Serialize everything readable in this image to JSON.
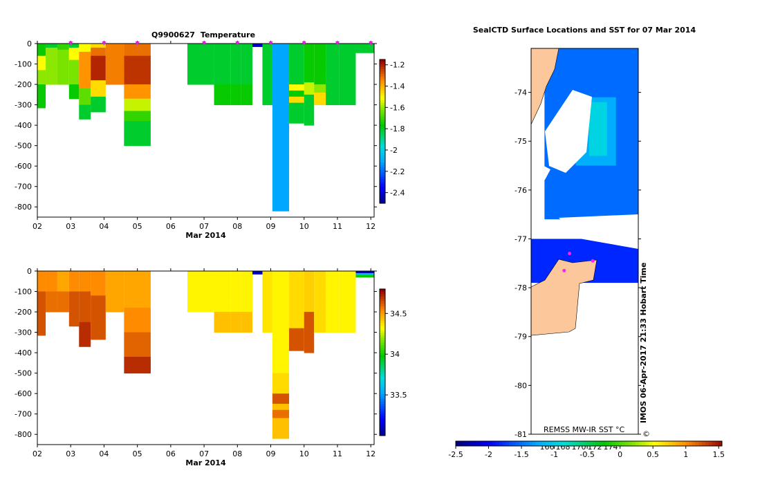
{
  "page": {
    "left_title_prefix": "Q9900627",
    "left_title_var": "Temperature",
    "right_title": "SealCTD Surface Locations and SST for 07 Mar 2014",
    "watermark": "IMOS 06-Apr-2017 21:33 Hobart Time",
    "copyright_symbol": "©"
  },
  "chart_data": [
    {
      "id": "temperature-section",
      "type": "heatmap",
      "title": "Q9900627  Temperature",
      "xlabel": "Mar 2014",
      "ylabel": "",
      "x_ticks": [
        "02",
        "03",
        "04",
        "05",
        "06",
        "07",
        "08",
        "09",
        "10",
        "11",
        "12"
      ],
      "x_tick_values": [
        2,
        3,
        4,
        5,
        6,
        7,
        8,
        9,
        10,
        11,
        12
      ],
      "xlim": [
        2,
        12.1
      ],
      "ylim": [
        -850,
        0
      ],
      "y_ticks": [
        0,
        -100,
        -200,
        -300,
        -400,
        -500,
        -600,
        -700,
        -800
      ],
      "colorbar": {
        "ticks": [
          -1.2,
          -1.4,
          -1.6,
          -1.8,
          -2,
          -2.2,
          -2.4
        ],
        "range": [
          -2.5,
          -1.15
        ]
      },
      "profile_markers_x": [
        3,
        4,
        5,
        7,
        8,
        9,
        10,
        11,
        12
      ],
      "profiles": [
        {
          "x0": 2.0,
          "x1": 2.25,
          "depth": -315,
          "segs": [
            [
              0,
              -60,
              -1.75
            ],
            [
              -60,
              -130,
              -1.5
            ],
            [
              -130,
              -200,
              -1.6
            ],
            [
              -200,
              -315,
              -1.75
            ]
          ]
        },
        {
          "x0": 2.25,
          "x1": 2.6,
          "depth": -200,
          "segs": [
            [
              0,
              -20,
              -1.8
            ],
            [
              -20,
              -200,
              -1.6
            ]
          ]
        },
        {
          "x0": 2.6,
          "x1": 2.95,
          "depth": -200,
          "segs": [
            [
              0,
              -30,
              -1.7
            ],
            [
              -30,
              -200,
              -1.62
            ]
          ]
        },
        {
          "x0": 2.95,
          "x1": 3.25,
          "depth": -270,
          "segs": [
            [
              0,
              -20,
              -1.8
            ],
            [
              -20,
              -80,
              -1.5
            ],
            [
              -80,
              -200,
              -1.62
            ],
            [
              -200,
              -270,
              -1.75
            ]
          ]
        },
        {
          "x0": 3.25,
          "x1": 3.6,
          "depth": -370,
          "segs": [
            [
              0,
              -40,
              -1.5
            ],
            [
              -40,
              -220,
              -1.35
            ],
            [
              -220,
              -300,
              -1.65
            ],
            [
              -300,
              -370,
              -1.8
            ]
          ]
        },
        {
          "x0": 3.6,
          "x1": 4.05,
          "depth": -335,
          "segs": [
            [
              0,
              -20,
              -1.45
            ],
            [
              -20,
              -60,
              -1.3
            ],
            [
              -60,
              -180,
              -1.2
            ],
            [
              -180,
              -260,
              -1.45
            ],
            [
              -260,
              -335,
              -1.8
            ]
          ]
        },
        {
          "x0": 4.05,
          "x1": 4.6,
          "depth": -200,
          "segs": [
            [
              0,
              -200,
              -1.32
            ]
          ]
        },
        {
          "x0": 4.6,
          "x1": 5.4,
          "depth": -500,
          "segs": [
            [
              0,
              -60,
              -1.3
            ],
            [
              -60,
              -200,
              -1.22
            ],
            [
              -200,
              -270,
              -1.35
            ],
            [
              -270,
              -330,
              -1.55
            ],
            [
              -330,
              -380,
              -1.7
            ],
            [
              -380,
              -500,
              -1.8
            ]
          ]
        },
        {
          "x0": 6.5,
          "x1": 7.3,
          "depth": -200,
          "segs": [
            [
              0,
              -200,
              -1.8
            ]
          ]
        },
        {
          "x0": 7.3,
          "x1": 7.8,
          "depth": -300,
          "segs": [
            [
              0,
              -200,
              -1.8
            ],
            [
              -200,
              -300,
              -1.75
            ]
          ]
        },
        {
          "x0": 7.8,
          "x1": 8.1,
          "depth": -300,
          "segs": [
            [
              0,
              -200,
              -1.8
            ],
            [
              -200,
              -300,
              -1.75
            ]
          ]
        },
        {
          "x0": 8.1,
          "x1": 8.45,
          "depth": -300,
          "segs": [
            [
              0,
              -200,
              -1.8
            ],
            [
              -200,
              -300,
              -1.75
            ]
          ]
        },
        {
          "x0": 8.75,
          "x1": 9.05,
          "depth": -300,
          "segs": [
            [
              0,
              -300,
              -1.8
            ]
          ]
        },
        {
          "x0": 9.05,
          "x1": 9.55,
          "depth": -820,
          "segs": [
            [
              0,
              -820,
              -2.1
            ]
          ]
        },
        {
          "x0": 9.55,
          "x1": 10.0,
          "depth": -390,
          "segs": [
            [
              0,
              -200,
              -1.8
            ],
            [
              -200,
              -230,
              -1.5
            ],
            [
              -230,
              -260,
              -1.75
            ],
            [
              -260,
              -290,
              -1.45
            ],
            [
              -290,
              -390,
              -1.8
            ]
          ]
        },
        {
          "x0": 10.0,
          "x1": 10.3,
          "depth": -400,
          "segs": [
            [
              0,
              -190,
              -1.75
            ],
            [
              -190,
              -250,
              -1.55
            ],
            [
              -250,
              -400,
              -1.8
            ]
          ]
        },
        {
          "x0": 10.3,
          "x1": 10.65,
          "depth": -300,
          "segs": [
            [
              0,
              -200,
              -1.75
            ],
            [
              -200,
              -240,
              -1.6
            ],
            [
              -240,
              -300,
              -1.45
            ]
          ]
        },
        {
          "x0": 10.65,
          "x1": 11.05,
          "depth": -300,
          "segs": [
            [
              0,
              -300,
              -1.8
            ]
          ]
        },
        {
          "x0": 11.05,
          "x1": 11.55,
          "depth": -300,
          "segs": [
            [
              0,
              -300,
              -1.8
            ]
          ]
        },
        {
          "x0": 11.55,
          "x1": 12.1,
          "depth": -45,
          "segs": [
            [
              0,
              -45,
              -1.8
            ]
          ]
        },
        {
          "x0": 8.45,
          "x1": 8.75,
          "depth": -15,
          "segs": [
            [
              0,
              -15,
              -2.4
            ]
          ]
        }
      ]
    },
    {
      "id": "salinity-section",
      "type": "heatmap",
      "title": "",
      "xlabel": "Mar 2014",
      "ylabel": "",
      "x_ticks": [
        "02",
        "03",
        "04",
        "05",
        "06",
        "07",
        "08",
        "09",
        "10",
        "11",
        "12"
      ],
      "x_tick_values": [
        2,
        3,
        4,
        5,
        6,
        7,
        8,
        9,
        10,
        11,
        12
      ],
      "xlim": [
        2,
        12.1
      ],
      "ylim": [
        -850,
        0
      ],
      "y_ticks": [
        0,
        -100,
        -200,
        -300,
        -400,
        -500,
        -600,
        -700,
        -800
      ],
      "colorbar": {
        "ticks": [
          34.5,
          34,
          33.5
        ],
        "range": [
          33.0,
          34.8
        ]
      },
      "profiles": [
        {
          "x0": 2.0,
          "x1": 2.25,
          "depth": -315,
          "segs": [
            [
              0,
              -100,
              34.55
            ],
            [
              -100,
              -315,
              34.65
            ]
          ]
        },
        {
          "x0": 2.25,
          "x1": 2.6,
          "depth": -200,
          "segs": [
            [
              0,
              -100,
              34.55
            ],
            [
              -100,
              -200,
              34.6
            ]
          ]
        },
        {
          "x0": 2.6,
          "x1": 2.95,
          "depth": -200,
          "segs": [
            [
              0,
              -100,
              34.5
            ],
            [
              -100,
              -200,
              34.6
            ]
          ]
        },
        {
          "x0": 2.95,
          "x1": 3.25,
          "depth": -270,
          "segs": [
            [
              0,
              -100,
              34.55
            ],
            [
              -100,
              -270,
              34.65
            ]
          ]
        },
        {
          "x0": 3.25,
          "x1": 3.6,
          "depth": -370,
          "segs": [
            [
              0,
              -100,
              34.55
            ],
            [
              -100,
              -250,
              34.65
            ],
            [
              -250,
              -370,
              34.72
            ]
          ]
        },
        {
          "x0": 3.6,
          "x1": 4.05,
          "depth": -335,
          "segs": [
            [
              0,
              -120,
              34.55
            ],
            [
              -120,
              -335,
              34.65
            ]
          ]
        },
        {
          "x0": 4.05,
          "x1": 4.6,
          "depth": -200,
          "segs": [
            [
              0,
              -200,
              34.5
            ]
          ]
        },
        {
          "x0": 4.6,
          "x1": 5.4,
          "depth": -500,
          "segs": [
            [
              0,
              -180,
              34.5
            ],
            [
              -180,
              -300,
              34.55
            ],
            [
              -300,
              -420,
              34.62
            ],
            [
              -420,
              -500,
              34.72
            ]
          ]
        },
        {
          "x0": 6.5,
          "x1": 7.3,
          "depth": -200,
          "segs": [
            [
              0,
              -200,
              34.35
            ]
          ]
        },
        {
          "x0": 7.3,
          "x1": 7.8,
          "depth": -300,
          "segs": [
            [
              0,
              -200,
              34.35
            ],
            [
              -200,
              -300,
              34.45
            ]
          ]
        },
        {
          "x0": 7.8,
          "x1": 8.1,
          "depth": -300,
          "segs": [
            [
              0,
              -200,
              34.35
            ],
            [
              -200,
              -300,
              34.45
            ]
          ]
        },
        {
          "x0": 8.1,
          "x1": 8.45,
          "depth": -300,
          "segs": [
            [
              0,
              -200,
              34.35
            ],
            [
              -200,
              -300,
              34.45
            ]
          ]
        },
        {
          "x0": 8.75,
          "x1": 9.05,
          "depth": -300,
          "segs": [
            [
              0,
              -300,
              34.38
            ]
          ]
        },
        {
          "x0": 9.05,
          "x1": 9.55,
          "depth": -820,
          "segs": [
            [
              0,
              -500,
              34.35
            ],
            [
              -500,
              -600,
              34.4
            ],
            [
              -600,
              -650,
              34.65
            ],
            [
              -650,
              -680,
              34.45
            ],
            [
              -680,
              -720,
              34.6
            ],
            [
              -720,
              -820,
              34.45
            ]
          ]
        },
        {
          "x0": 9.55,
          "x1": 10.0,
          "depth": -390,
          "segs": [
            [
              0,
              -280,
              34.4
            ],
            [
              -280,
              -390,
              34.65
            ]
          ]
        },
        {
          "x0": 10.0,
          "x1": 10.3,
          "depth": -400,
          "segs": [
            [
              0,
              -200,
              34.42
            ],
            [
              -200,
              -400,
              34.65
            ]
          ]
        },
        {
          "x0": 10.3,
          "x1": 10.65,
          "depth": -300,
          "segs": [
            [
              0,
              -300,
              34.4
            ]
          ]
        },
        {
          "x0": 10.65,
          "x1": 11.05,
          "depth": -300,
          "segs": [
            [
              0,
              -300,
              34.35
            ]
          ]
        },
        {
          "x0": 11.05,
          "x1": 11.55,
          "depth": -300,
          "segs": [
            [
              0,
              -300,
              34.35
            ]
          ]
        },
        {
          "x0": 11.55,
          "x1": 12.1,
          "depth": -30,
          "segs": [
            [
              0,
              -10,
              33.1
            ],
            [
              -10,
              -20,
              33.6
            ],
            [
              -20,
              -30,
              34.0
            ]
          ]
        },
        {
          "x0": 8.45,
          "x1": 8.75,
          "depth": -15,
          "segs": [
            [
              0,
              -15,
              33.1
            ]
          ]
        }
      ]
    },
    {
      "id": "sst-map",
      "type": "heatmap",
      "title": "SealCTD Surface Locations and SST for 07 Mar 2014",
      "xlabel": "",
      "ylabel": "",
      "x_tick_labels": [
        "166",
        "168",
        "170",
        "172",
        "174"
      ],
      "x_tick_values": [
        166,
        168,
        170,
        172,
        174
      ],
      "xlim": [
        163.5,
        175.5
      ],
      "ylim": [
        -81,
        -73.1
      ],
      "y_ticks": [
        -74,
        -75,
        -76,
        -77,
        -78,
        -79,
        -80,
        -81
      ],
      "colorbar_label": "REMSS MW-IR SST °C",
      "colorbar": {
        "ticks": [
          -2.5,
          -2,
          -1.5,
          -1,
          -0.5,
          0,
          0.5,
          1,
          1.5
        ],
        "range": [
          -2.5,
          1.55
        ]
      },
      "sst_patches": [
        {
          "lon0": 165.0,
          "lon1": 175.5,
          "lat0": -76.6,
          "lat1": -73.1,
          "value": -1.55
        },
        {
          "lon0": 168.5,
          "lon1": 173.0,
          "lat0": -75.5,
          "lat1": -74.1,
          "value": -1.25
        },
        {
          "lon0": 170.0,
          "lon1": 172.0,
          "lat0": -75.3,
          "lat1": -74.2,
          "value": -0.95
        },
        {
          "lon0": 163.5,
          "lon1": 175.5,
          "lat0": -77.9,
          "lat1": -77.0,
          "value": -1.85
        }
      ],
      "seal_positions": [
        {
          "lon": 167.8,
          "lat": -77.3
        },
        {
          "lon": 170.4,
          "lat": -77.45
        },
        {
          "lon": 167.2,
          "lat": -77.65
        }
      ]
    }
  ]
}
